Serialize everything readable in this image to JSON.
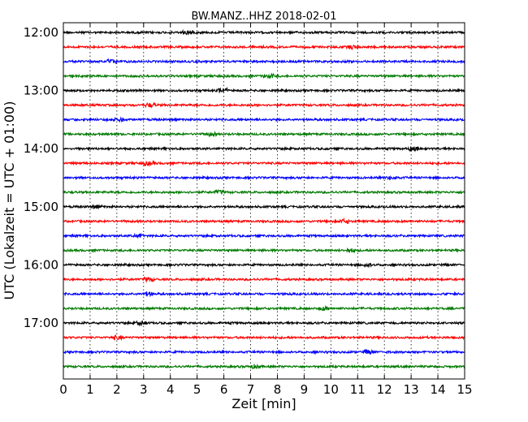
{
  "chart_data": {
    "type": "line",
    "title": "BW.MANZ..HHZ 2018-02-01",
    "xlabel": "Zeit  [min]",
    "ylabel": "UTC (Lokalzeit = UTC + 01:00)",
    "xlim": [
      0,
      15
    ],
    "x_ticks": [
      "0",
      "1",
      "2",
      "3",
      "4",
      "5",
      "6",
      "7",
      "8",
      "9",
      "10",
      "11",
      "12",
      "13",
      "14",
      "15"
    ],
    "x_grid": true,
    "y_tick_labels": [
      "12:00",
      "13:00",
      "14:00",
      "15:00",
      "16:00",
      "17:00"
    ],
    "trace_interval_minutes": 15,
    "trace_start": "12:00",
    "trace_count": 24,
    "trace_colors": [
      "#000000",
      "#ff0000",
      "#0000ff",
      "#007a00"
    ]
  }
}
